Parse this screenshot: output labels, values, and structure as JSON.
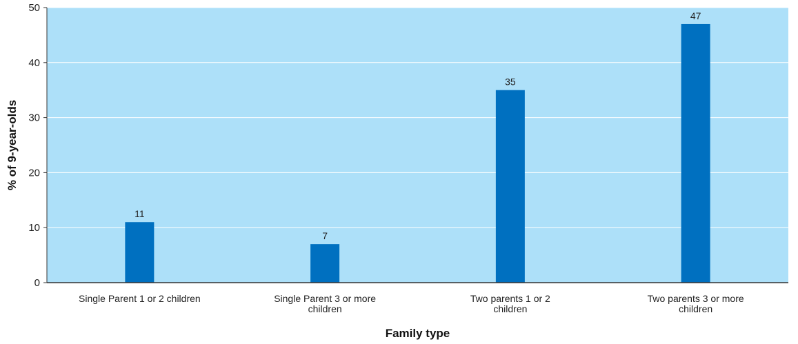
{
  "chart_data": {
    "type": "bar",
    "title": "",
    "xlabel": "Family type",
    "ylabel": "% of 9-year-olds",
    "categories": [
      [
        "Single Parent 1 or 2 children"
      ],
      [
        "Single Parent 3 or more",
        "children"
      ],
      [
        "Two parents 1 or 2",
        "children"
      ],
      [
        "Two parents 3 or more",
        "children"
      ]
    ],
    "values": [
      11,
      7,
      35,
      47
    ],
    "ylim": [
      0,
      50
    ],
    "yticks": [
      0,
      10,
      20,
      30,
      40,
      50
    ],
    "grid": true,
    "legend": "none",
    "colors": {
      "plot_background": "#ade0f9",
      "bar": "#0070c0",
      "gridline": "#ffffff",
      "axis": "#333333"
    }
  }
}
